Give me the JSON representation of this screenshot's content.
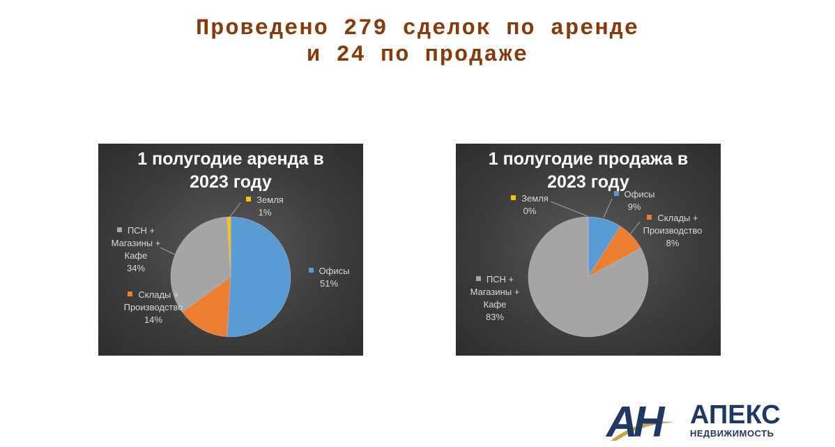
{
  "slide_title": [
    "Проведено 279 сделок по аренде",
    "и 24 по продаже"
  ],
  "chart_data": [
    {
      "type": "pie",
      "title": "1 полугодие аренда в 2023 году",
      "categories": [
        "Офисы",
        "Склады + Производство",
        "ПСН + Магазины + Кафе",
        "Земля"
      ],
      "values": [
        51,
        14,
        34,
        1
      ],
      "value_labels": [
        "51%",
        "14%",
        "34%",
        "1%"
      ],
      "colors": [
        "#5b9bd5",
        "#ed7d31",
        "#a5a5a5",
        "#ffc000"
      ]
    },
    {
      "type": "pie",
      "title": "1 полугодие продажа в 2023 году",
      "categories": [
        "Офисы",
        "Склады + Производство",
        "ПСН + Магазины + Кафе",
        "Земля"
      ],
      "values": [
        9,
        8,
        83,
        0
      ],
      "value_labels": [
        "9%",
        "8%",
        "83%",
        "0%"
      ],
      "colors": [
        "#5b9bd5",
        "#ed7d31",
        "#a5a5a5",
        "#ffc000"
      ]
    }
  ],
  "logo": {
    "mark": "АН",
    "name": "АПЕКС",
    "tagline": "НЕДВИЖИМОСТЬ"
  }
}
